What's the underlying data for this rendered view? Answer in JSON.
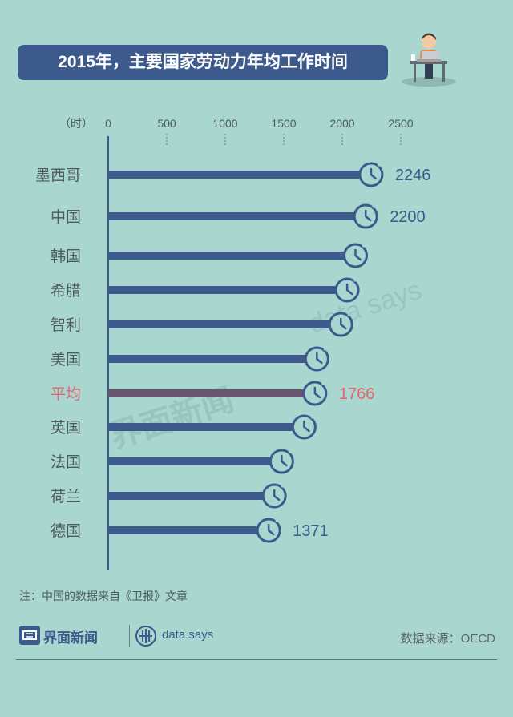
{
  "title": "2015年，主要国家劳动力年均工作时间",
  "note": "注：中国的数据来自《卫报》文章",
  "source": "数据来源：OECD",
  "brand": {
    "name": "界面新闻",
    "sub": "data says",
    "watermark_main": "界面新闻",
    "watermark_sub": "data says"
  },
  "colors": {
    "background": "#a9d7cf",
    "bar": "#3d5a8c",
    "highlight_bar": "#6a5570",
    "highlight_text": "#e0666f",
    "label": "#4c5a62"
  },
  "icons": [
    "clock-icon",
    "office-worker-icon",
    "newspaper-logo-icon",
    "data-says-logo-icon"
  ],
  "chart_data": {
    "type": "bar",
    "orientation": "horizontal",
    "title": "2015年，主要国家劳动力年均工作时间",
    "unit_label": "（时）",
    "xlim": [
      0,
      2500
    ],
    "ticks": [
      0,
      500,
      1000,
      1500,
      2000,
      2500
    ],
    "grid": "dashed tick marks under axis labels",
    "categories": [
      "墨西哥",
      "中国",
      "韩国",
      "希腊",
      "智利",
      "美国",
      "平均",
      "英国",
      "法国",
      "荷兰",
      "德国"
    ],
    "values": [
      2246,
      2200,
      2113,
      2042,
      1988,
      1783,
      1766,
      1674,
      1482,
      1419,
      1371
    ],
    "data_labels": [
      "2246",
      "2200",
      "",
      "",
      "",
      "",
      "1766",
      "",
      "",
      "",
      "1371"
    ],
    "highlight": "平均"
  }
}
